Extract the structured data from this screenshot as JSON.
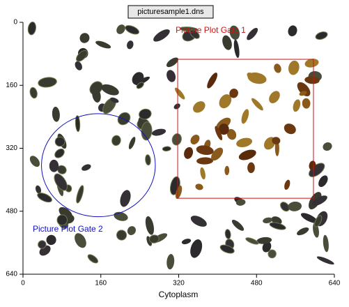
{
  "chart_data": {
    "type": "picture-plot",
    "title": "picturesample1.dns",
    "x_label": "Cytoplasm",
    "xlim": [
      0,
      640
    ],
    "ylim": [
      640,
      0
    ],
    "xticks": [
      0,
      160,
      320,
      480,
      640
    ],
    "yticks": [
      0,
      160,
      320,
      480,
      640
    ],
    "gates": [
      {
        "name": "Picture Plot Gate 1",
        "shape": "rectangle",
        "color": "#d01010",
        "x": [
          318,
          597
        ],
        "y": [
          94,
          447
        ]
      },
      {
        "name": "Picture Plot Gate 2",
        "shape": "ellipse",
        "color": "#1010c0",
        "center": [
          155,
          363
        ],
        "radius": [
          117,
          131
        ]
      }
    ]
  }
}
